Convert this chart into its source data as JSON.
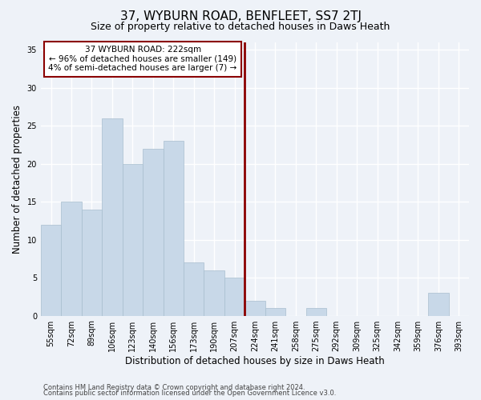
{
  "title": "37, WYBURN ROAD, BENFLEET, SS7 2TJ",
  "subtitle": "Size of property relative to detached houses in Daws Heath",
  "xlabel": "Distribution of detached houses by size in Daws Heath",
  "ylabel": "Number of detached properties",
  "categories": [
    "55sqm",
    "72sqm",
    "89sqm",
    "106sqm",
    "123sqm",
    "140sqm",
    "156sqm",
    "173sqm",
    "190sqm",
    "207sqm",
    "224sqm",
    "241sqm",
    "258sqm",
    "275sqm",
    "292sqm",
    "309sqm",
    "325sqm",
    "342sqm",
    "359sqm",
    "376sqm",
    "393sqm"
  ],
  "values": [
    12,
    15,
    14,
    26,
    20,
    22,
    23,
    7,
    6,
    5,
    2,
    1,
    0,
    1,
    0,
    0,
    0,
    0,
    0,
    3,
    0
  ],
  "bar_color": "#c8d8e8",
  "bar_edgecolor": "#a8bece",
  "vline_x_index": 10,
  "vline_color": "#8b0000",
  "annotation_text": "37 WYBURN ROAD: 222sqm\n← 96% of detached houses are smaller (149)\n4% of semi-detached houses are larger (7) →",
  "annotation_box_color": "#ffffff",
  "annotation_box_edgecolor": "#8b0000",
  "ylim": [
    0,
    36
  ],
  "yticks": [
    0,
    5,
    10,
    15,
    20,
    25,
    30,
    35
  ],
  "bg_color": "#eef2f8",
  "grid_color": "#ffffff",
  "footer1": "Contains HM Land Registry data © Crown copyright and database right 2024.",
  "footer2": "Contains public sector information licensed under the Open Government Licence v3.0.",
  "title_fontsize": 11,
  "subtitle_fontsize": 9,
  "xlabel_fontsize": 8.5,
  "ylabel_fontsize": 8.5,
  "tick_fontsize": 7,
  "annotation_fontsize": 7.5,
  "footer_fontsize": 6
}
